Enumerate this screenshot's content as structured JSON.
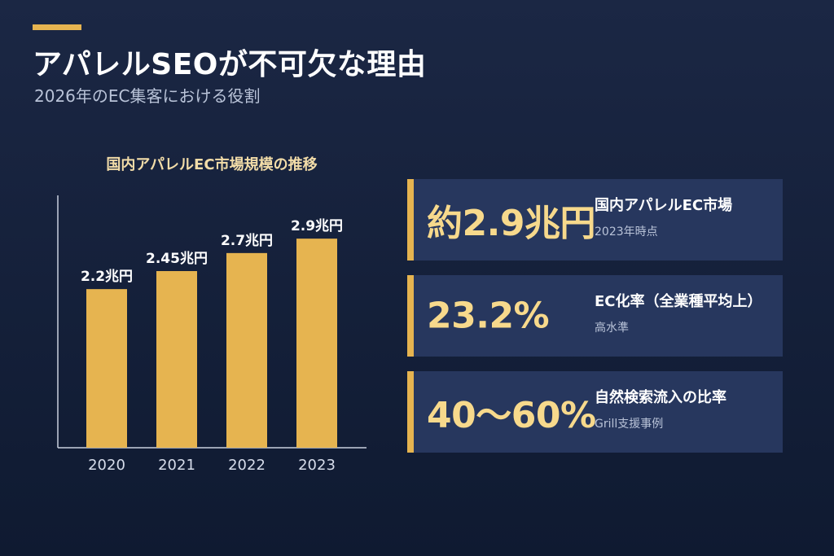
{
  "header": {
    "title": "アパレルSEOが不可欠な理由",
    "subtitle": "2026年のEC集客における役割"
  },
  "colors": {
    "accent": "#e6b450",
    "value_text": "#f7d98c",
    "card_bg": "#27375e",
    "background": "#17223d"
  },
  "chart_data": {
    "type": "bar",
    "title": "国内アパレルEC市場規模の推移",
    "categories": [
      "2020",
      "2021",
      "2022",
      "2023"
    ],
    "values": [
      2.2,
      2.45,
      2.7,
      2.9
    ],
    "data_labels": [
      "2.2兆円",
      "2.45兆円",
      "2.7兆円",
      "2.9兆円"
    ],
    "ylim": [
      0,
      3.5
    ],
    "grid": false,
    "bar_color": "#e6b450"
  },
  "stats": [
    {
      "value": "約2.9兆円",
      "label": "国内アパレルEC市場",
      "note": "2023年時点"
    },
    {
      "value": "23.2%",
      "label": "EC化率（全業種平均上）",
      "note": "高水準"
    },
    {
      "value": "40〜60%",
      "label": "自然検索流入の比率",
      "note": "Grill支援事例"
    }
  ]
}
